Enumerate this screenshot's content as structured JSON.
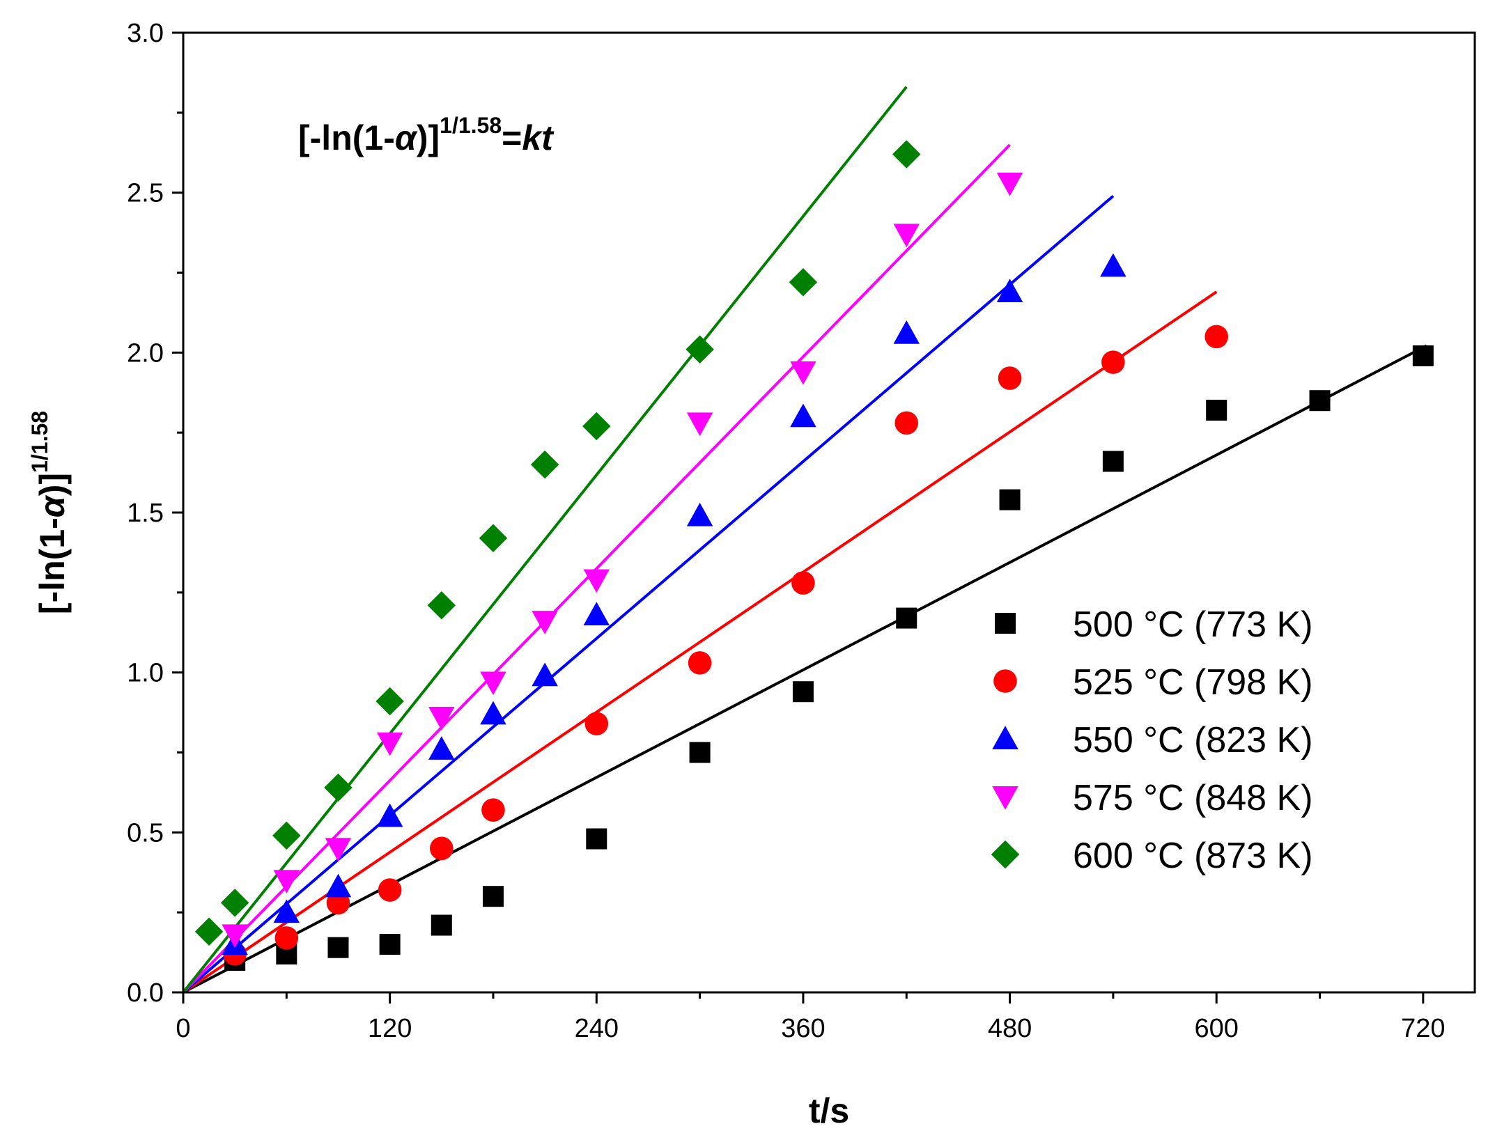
{
  "chart_data": {
    "type": "scatter",
    "title": "",
    "xlabel": "t/s",
    "ylabel": {
      "main": "[-ln(1-",
      "symbol": "α",
      "close": ")]",
      "exponent": "1/1.58"
    },
    "equation": {
      "main": "[-ln(1-",
      "symbol": "α",
      "close": ")]",
      "exponent": "1/1.58",
      "rhs": "=",
      "rhs_var": "kt"
    },
    "xlim": [
      0,
      750
    ],
    "ylim": [
      0,
      3.0
    ],
    "x_ticks": [
      "0",
      "120",
      "240",
      "360",
      "480",
      "600",
      "720"
    ],
    "y_ticks": [
      "0.0",
      "0.5",
      "1.0",
      "1.5",
      "2.0",
      "2.5",
      "3.0"
    ],
    "legend_position": "bottom-right",
    "series": [
      {
        "name": "500 °C (773 K)",
        "marker": "square",
        "color": "#000000",
        "x": [
          30,
          60,
          90,
          120,
          150,
          180,
          240,
          300,
          360,
          420,
          480,
          540,
          600,
          660,
          720
        ],
        "y": [
          0.1,
          0.12,
          0.14,
          0.15,
          0.21,
          0.3,
          0.48,
          0.75,
          0.94,
          1.17,
          1.54,
          1.66,
          1.82,
          1.85,
          1.99
        ],
        "fit": {
          "slope": 0.0028,
          "x_end": 722
        }
      },
      {
        "name": "525 °C (798 K)",
        "marker": "circle",
        "color": "#ff0000",
        "x": [
          30,
          60,
          90,
          120,
          150,
          180,
          240,
          300,
          360,
          420,
          480,
          540,
          600
        ],
        "y": [
          0.12,
          0.17,
          0.28,
          0.32,
          0.45,
          0.57,
          0.84,
          1.03,
          1.28,
          1.78,
          1.92,
          1.97,
          2.05
        ],
        "fit": {
          "slope": 0.00365,
          "x_end": 600
        }
      },
      {
        "name": "550 °C (823 K)",
        "marker": "triangle-up",
        "color": "#0000ff",
        "x": [
          30,
          60,
          90,
          120,
          150,
          180,
          210,
          240,
          300,
          360,
          420,
          480,
          540
        ],
        "y": [
          0.15,
          0.25,
          0.33,
          0.55,
          0.76,
          0.87,
          0.99,
          1.18,
          1.49,
          1.8,
          2.06,
          2.19,
          2.27
        ],
        "fit": {
          "slope": 0.00461,
          "x_end": 540
        }
      },
      {
        "name": "575 °C (848 K)",
        "marker": "triangle-down",
        "color": "#ff00ff",
        "x": [
          30,
          60,
          90,
          120,
          150,
          180,
          210,
          240,
          300,
          360,
          420,
          480
        ],
        "y": [
          0.18,
          0.35,
          0.45,
          0.78,
          0.86,
          0.97,
          1.16,
          1.29,
          1.78,
          1.94,
          2.37,
          2.53
        ],
        "fit": {
          "slope": 0.00552,
          "x_end": 480
        }
      },
      {
        "name": "600 °C (873 K)",
        "marker": "diamond",
        "color": "#008000",
        "x": [
          15,
          30,
          60,
          90,
          120,
          150,
          180,
          210,
          240,
          300,
          360,
          420
        ],
        "y": [
          0.19,
          0.28,
          0.49,
          0.64,
          0.91,
          1.21,
          1.42,
          1.65,
          1.77,
          2.01,
          2.22,
          2.62
        ],
        "fit": {
          "slope": 0.00674,
          "x_end": 420
        }
      }
    ]
  }
}
